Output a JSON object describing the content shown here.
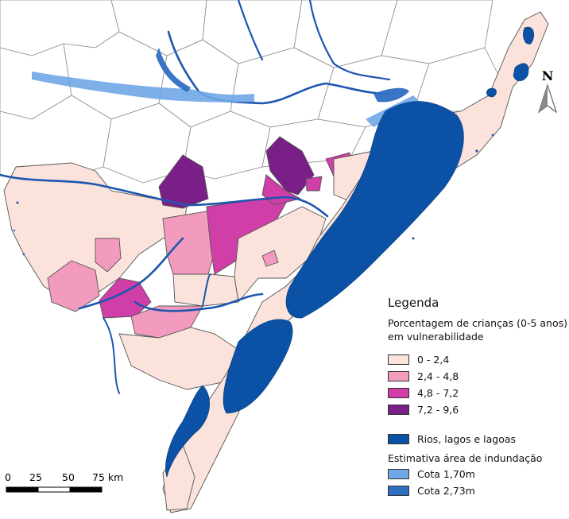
{
  "legend": {
    "title": "Legenda",
    "subtitle_line1": "Porcentagem de crianças (0-5 anos)",
    "subtitle_line2": "em vulnerabilidade",
    "classes": [
      {
        "label": "0 - 2,4",
        "color": "#fbe3dc"
      },
      {
        "label": "2,4 - 4,8",
        "color": "#f29bbe"
      },
      {
        "label": "4,8 - 7,2",
        "color": "#d03ea8"
      },
      {
        "label": "7,2 - 9,6",
        "color": "#7a1f88"
      }
    ],
    "water_label": "Rios, lagos e lagoas",
    "water_color": "#0b52a6",
    "flood_title": "Estimativa área de indundação",
    "flood": [
      {
        "label": "Cota 1,70m",
        "color": "#6fa6e6"
      },
      {
        "label": "Cota 2,73m",
        "color": "#2f6fc2"
      }
    ]
  },
  "north_label": "N",
  "scale": {
    "ticks": [
      "0",
      "25",
      "50",
      "75 km"
    ]
  }
}
